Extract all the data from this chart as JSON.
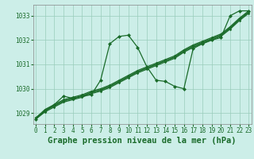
{
  "title": "Graphe pression niveau de la mer (hPa)",
  "bg_color": "#cceee8",
  "grid_color": "#99ccbb",
  "line_color": "#1a6b2a",
  "x_values": [
    0,
    1,
    2,
    3,
    4,
    5,
    6,
    7,
    8,
    9,
    10,
    11,
    12,
    13,
    14,
    15,
    16,
    17,
    18,
    19,
    20,
    21,
    22,
    23
  ],
  "smooth_series": [
    [
      1028.8,
      1029.1,
      1029.3,
      1029.5,
      1029.6,
      1029.7,
      1029.85,
      1029.95,
      1030.1,
      1030.3,
      1030.5,
      1030.7,
      1030.85,
      1031.0,
      1031.15,
      1031.3,
      1031.55,
      1031.75,
      1031.9,
      1032.05,
      1032.2,
      1032.5,
      1032.85,
      1033.15
    ],
    [
      1028.8,
      1029.15,
      1029.35,
      1029.55,
      1029.65,
      1029.75,
      1029.9,
      1030.0,
      1030.15,
      1030.35,
      1030.55,
      1030.75,
      1030.9,
      1031.05,
      1031.2,
      1031.35,
      1031.6,
      1031.8,
      1031.95,
      1032.1,
      1032.25,
      1032.55,
      1032.9,
      1033.2
    ],
    [
      1028.8,
      1029.1,
      1029.3,
      1029.5,
      1029.6,
      1029.7,
      1029.85,
      1029.95,
      1030.1,
      1030.3,
      1030.5,
      1030.7,
      1030.85,
      1031.0,
      1031.15,
      1031.3,
      1031.55,
      1031.75,
      1031.9,
      1032.05,
      1032.2,
      1032.5,
      1032.85,
      1033.15
    ],
    [
      1028.75,
      1029.05,
      1029.25,
      1029.45,
      1029.55,
      1029.65,
      1029.8,
      1029.9,
      1030.05,
      1030.25,
      1030.45,
      1030.65,
      1030.8,
      1030.95,
      1031.1,
      1031.25,
      1031.5,
      1031.7,
      1031.85,
      1032.0,
      1032.15,
      1032.45,
      1032.8,
      1033.1
    ]
  ],
  "volatile_series": [
    1028.75,
    1029.1,
    1029.35,
    1029.7,
    1029.6,
    1029.7,
    1029.75,
    1030.35,
    1031.85,
    1032.15,
    1032.2,
    1031.7,
    1030.9,
    1030.35,
    1030.3,
    1030.1,
    1030.0,
    1031.65,
    1031.85,
    1032.0,
    1032.1,
    1033.0,
    1033.2,
    1033.2
  ],
  "ylim": [
    1028.55,
    1033.45
  ],
  "yticks": [
    1029,
    1030,
    1031,
    1032,
    1033
  ],
  "xticks": [
    0,
    1,
    2,
    3,
    4,
    5,
    6,
    7,
    8,
    9,
    10,
    11,
    12,
    13,
    14,
    15,
    16,
    17,
    18,
    19,
    20,
    21,
    22,
    23
  ],
  "title_fontsize": 7.5,
  "tick_fontsize": 5.5,
  "title_color": "#1a6b2a",
  "tick_color": "#1a6b2a"
}
